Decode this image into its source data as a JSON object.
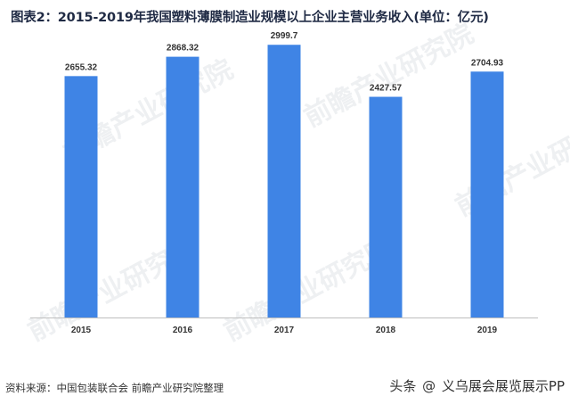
{
  "title": "图表2：2015-2019年我国塑料薄膜制造业规模以上企业主营业务收入(单位：亿元)",
  "source": "资料来源：中国包装联合会 前瞻产业研究院整理",
  "brand": {
    "prefix": "头条",
    "at": "@",
    "name": "义乌展会展览展示PP"
  },
  "watermark_text": "前瞻产业研究院",
  "colors": {
    "bar": "#3f84e5",
    "axis": "#bfbfbf",
    "title": "#1f2a44"
  },
  "chart_data": {
    "type": "bar",
    "categories": [
      "2015",
      "2016",
      "2017",
      "2018",
      "2019"
    ],
    "values": [
      2655.32,
      2868.32,
      2999.7,
      2427.57,
      2704.93
    ],
    "data_labels": [
      "2655.32",
      "2868.32",
      "2999.7",
      "2427.57",
      "2704.93"
    ],
    "title": "图表2：2015-2019年我国塑料薄膜制造业规模以上企业主营业务收入(单位：亿元)",
    "xlabel": "",
    "ylabel": "",
    "ylim": [
      0,
      3100
    ],
    "grid": false,
    "legend": "none"
  }
}
